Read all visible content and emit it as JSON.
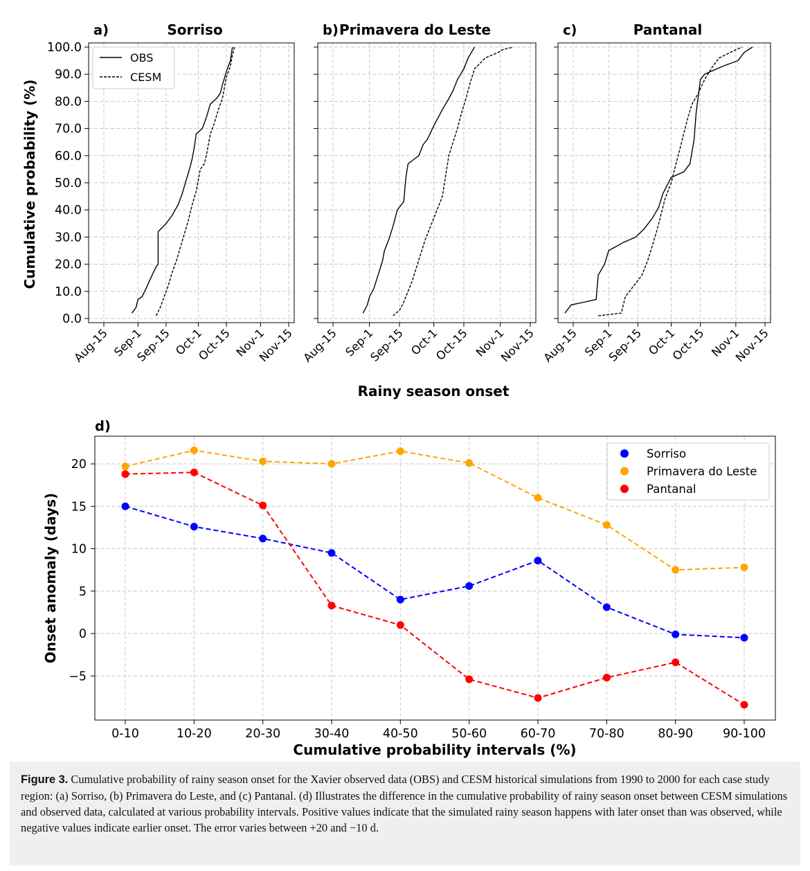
{
  "chart_data": [
    {
      "type": "line",
      "panel_label": "a)",
      "title": "Sorriso",
      "ylabel": "Cumulative probability (%)",
      "xlabel": "Rainy season onset",
      "x_ticks": [
        "Aug-15",
        "Sep-1",
        "Sep-15",
        "Oct-1",
        "Oct-15",
        "Nov-1",
        "Nov-15"
      ],
      "y_ticks": [
        "0.0",
        "10.0",
        "20.0",
        "30.0",
        "40.0",
        "50.0",
        "60.0",
        "70.0",
        "80.0",
        "90.0",
        "100.0"
      ],
      "xlim": [
        "Aug-15",
        "Nov-15"
      ],
      "ylim": [
        0,
        100
      ],
      "grid": true,
      "legend": "top-left",
      "series": [
        {
          "name": "OBS",
          "style": "solid",
          "points": [
            [
              "Aug-29",
              2
            ],
            [
              "Aug-31",
              4
            ],
            [
              "Sep-1",
              7
            ],
            [
              "Sep-3",
              8
            ],
            [
              "Sep-5",
              11
            ],
            [
              "Sep-8",
              16
            ],
            [
              "Sep-10",
              19
            ],
            [
              "Sep-11",
              20
            ],
            [
              "Sep-11",
              32
            ],
            [
              "Sep-15",
              35
            ],
            [
              "Sep-18",
              38
            ],
            [
              "Sep-21",
              42
            ],
            [
              "Sep-23",
              46
            ],
            [
              "Sep-25",
              51
            ],
            [
              "Sep-27",
              56
            ],
            [
              "Sep-28",
              59
            ],
            [
              "Sep-29",
              63
            ],
            [
              "Sep-30",
              68
            ],
            [
              "Oct-3",
              70
            ],
            [
              "Oct-5",
              74
            ],
            [
              "Oct-7",
              79
            ],
            [
              "Oct-10",
              81
            ],
            [
              "Oct-12",
              83
            ],
            [
              "Oct-13",
              86
            ],
            [
              "Oct-15",
              91
            ],
            [
              "Oct-17",
              95
            ],
            [
              "Oct-18",
              100
            ]
          ]
        },
        {
          "name": "CESM",
          "style": "dashed",
          "points": [
            [
              "Sep-10",
              1
            ],
            [
              "Sep-12",
              4
            ],
            [
              "Sep-14",
              8
            ],
            [
              "Sep-16",
              12
            ],
            [
              "Sep-18",
              17
            ],
            [
              "Sep-20",
              21
            ],
            [
              "Sep-22",
              26
            ],
            [
              "Sep-24",
              31
            ],
            [
              "Sep-26",
              36
            ],
            [
              "Sep-28",
              42
            ],
            [
              "Sep-30",
              47
            ],
            [
              "Oct-1",
              51
            ],
            [
              "Oct-2",
              55
            ],
            [
              "Oct-4",
              57
            ],
            [
              "Oct-5",
              60
            ],
            [
              "Oct-6",
              64
            ],
            [
              "Oct-7",
              68
            ],
            [
              "Oct-9",
              72
            ],
            [
              "Oct-11",
              77
            ],
            [
              "Oct-13",
              81
            ],
            [
              "Oct-14",
              85
            ],
            [
              "Oct-15",
              89
            ],
            [
              "Oct-17",
              93
            ],
            [
              "Oct-18",
              97
            ],
            [
              "Oct-19",
              100
            ]
          ]
        }
      ]
    },
    {
      "type": "line",
      "panel_label": "b)",
      "title": "Primavera do Leste",
      "xlabel": "Rainy season onset",
      "x_ticks": [
        "Aug-15",
        "Sep-1",
        "Sep-15",
        "Oct-1",
        "Oct-15",
        "Nov-1",
        "Nov-15"
      ],
      "xlim": [
        "Aug-15",
        "Nov-15"
      ],
      "ylim": [
        0,
        100
      ],
      "grid": true,
      "series": [
        {
          "name": "OBS",
          "style": "solid",
          "points": [
            [
              "Aug-29",
              2
            ],
            [
              "Aug-31",
              5
            ],
            [
              "Sep-1",
              8
            ],
            [
              "Sep-3",
              11
            ],
            [
              "Sep-5",
              16
            ],
            [
              "Sep-7",
              21
            ],
            [
              "Sep-8",
              25
            ],
            [
              "Sep-10",
              29
            ],
            [
              "Sep-12",
              34
            ],
            [
              "Sep-14",
              40
            ],
            [
              "Sep-17",
              43
            ],
            [
              "Sep-18",
              52
            ],
            [
              "Sep-19",
              57
            ],
            [
              "Sep-24",
              60
            ],
            [
              "Sep-26",
              64
            ],
            [
              "Sep-28",
              66
            ],
            [
              "Oct-1",
              71
            ],
            [
              "Oct-3",
              74
            ],
            [
              "Oct-5",
              77
            ],
            [
              "Oct-8",
              81
            ],
            [
              "Oct-10",
              84
            ],
            [
              "Oct-12",
              88
            ],
            [
              "Oct-15",
              92
            ],
            [
              "Oct-17",
              96
            ],
            [
              "Oct-20",
              100
            ]
          ]
        },
        {
          "name": "CESM",
          "style": "dashed",
          "points": [
            [
              "Sep-12",
              1
            ],
            [
              "Sep-15",
              3
            ],
            [
              "Sep-17",
              6
            ],
            [
              "Sep-19",
              10
            ],
            [
              "Sep-21",
              14
            ],
            [
              "Sep-23",
              19
            ],
            [
              "Sep-25",
              24
            ],
            [
              "Sep-27",
              29
            ],
            [
              "Sep-29",
              33
            ],
            [
              "Oct-1",
              37
            ],
            [
              "Oct-3",
              41
            ],
            [
              "Oct-5",
              45
            ],
            [
              "Oct-6",
              50
            ],
            [
              "Oct-7",
              55
            ],
            [
              "Oct-8",
              60
            ],
            [
              "Oct-10",
              65
            ],
            [
              "Oct-12",
              70
            ],
            [
              "Oct-14",
              76
            ],
            [
              "Oct-16",
              81
            ],
            [
              "Oct-18",
              87
            ],
            [
              "Oct-20",
              92
            ],
            [
              "Oct-25",
              96
            ],
            [
              "Oct-31",
              98
            ],
            [
              "Nov-2",
              99
            ],
            [
              "Nov-7",
              100
            ]
          ]
        }
      ]
    },
    {
      "type": "line",
      "panel_label": "c)",
      "title": "Pantanal",
      "xlabel": "Rainy season onset",
      "x_ticks": [
        "Aug-15",
        "Sep-1",
        "Sep-15",
        "Oct-1",
        "Oct-15",
        "Nov-1",
        "Nov-15"
      ],
      "xlim": [
        "Aug-15",
        "Nov-15"
      ],
      "ylim": [
        0,
        100
      ],
      "grid": true,
      "series": [
        {
          "name": "OBS",
          "style": "solid",
          "points": [
            [
              "Aug-11",
              2
            ],
            [
              "Aug-14",
              5
            ],
            [
              "Aug-20",
              6
            ],
            [
              "Aug-26",
              7
            ],
            [
              "Aug-27",
              16
            ],
            [
              "Aug-30",
              20
            ],
            [
              "Sep-1",
              25
            ],
            [
              "Sep-8",
              28
            ],
            [
              "Sep-14",
              30
            ],
            [
              "Sep-18",
              33
            ],
            [
              "Sep-22",
              37
            ],
            [
              "Sep-25",
              41
            ],
            [
              "Sep-27",
              46
            ],
            [
              "Sep-29",
              49
            ],
            [
              "Oct-1",
              52
            ],
            [
              "Oct-7",
              54
            ],
            [
              "Oct-10",
              57
            ],
            [
              "Oct-12",
              66
            ],
            [
              "Oct-13",
              76
            ],
            [
              "Oct-14",
              82
            ],
            [
              "Oct-15",
              88
            ],
            [
              "Oct-17",
              90
            ],
            [
              "Oct-26",
              93
            ],
            [
              "Nov-2",
              95
            ],
            [
              "Nov-5",
              98
            ],
            [
              "Nov-9",
              100
            ]
          ]
        },
        {
          "name": "CESM",
          "style": "dashed",
          "points": [
            [
              "Aug-27",
              1
            ],
            [
              "Sep-7",
              2
            ],
            [
              "Sep-9",
              8
            ],
            [
              "Sep-13",
              12
            ],
            [
              "Sep-17",
              16
            ],
            [
              "Sep-20",
              22
            ],
            [
              "Sep-22",
              27
            ],
            [
              "Sep-24",
              32
            ],
            [
              "Sep-26",
              38
            ],
            [
              "Sep-28",
              44
            ],
            [
              "Oct-1",
              50
            ],
            [
              "Oct-3",
              56
            ],
            [
              "Oct-5",
              62
            ],
            [
              "Oct-7",
              68
            ],
            [
              "Oct-9",
              74
            ],
            [
              "Oct-11",
              79
            ],
            [
              "Oct-14",
              83
            ],
            [
              "Oct-17",
              88
            ],
            [
              "Oct-21",
              93
            ],
            [
              "Oct-24",
              96
            ],
            [
              "Nov-1",
              99
            ],
            [
              "Nov-4",
              100
            ]
          ]
        }
      ]
    },
    {
      "type": "line",
      "panel_label": "d)",
      "xlabel": "Cumulative probability intervals (%)",
      "ylabel": "Onset anomaly (days)",
      "categories": [
        "0-10",
        "10-20",
        "20-30",
        "30-40",
        "40-50",
        "50-60",
        "60-70",
        "70-80",
        "80-90",
        "90-100"
      ],
      "y_ticks": [
        "−5",
        "0",
        "5",
        "10",
        "15",
        "20"
      ],
      "ylim": [
        -9.3,
        23.3
      ],
      "grid": true,
      "legend": "top-right",
      "series": [
        {
          "name": "Sorriso",
          "color": "#0000ff",
          "values": [
            15.0,
            12.6,
            11.2,
            9.5,
            4.0,
            5.6,
            8.6,
            3.1,
            -0.1,
            -0.5
          ]
        },
        {
          "name": "Primavera do Leste",
          "color": "#ffa500",
          "values": [
            19.7,
            21.6,
            20.3,
            20.0,
            21.5,
            20.1,
            16.0,
            12.8,
            7.5,
            7.8
          ]
        },
        {
          "name": "Pantanal",
          "color": "#ff0000",
          "values": [
            18.8,
            19.0,
            15.1,
            3.3,
            1.0,
            -5.4,
            -7.6,
            -5.2,
            -3.4,
            -8.4
          ]
        }
      ]
    }
  ],
  "caption": {
    "label": "Figure 3.",
    "text": " Cumulative probability of rainy season onset for the Xavier observed data (OBS) and CESM historical simulations from 1990 to 2000 for each case study region: (a) Sorriso, (b) Primavera do Leste, and (c) Pantanal. (d) Illustrates the difference in the cumulative probability of rainy season onset between CESM simulations and observed data, calculated at various probability intervals. Positive values indicate that the simulated rainy season happens with later onset than was observed, while negative values indicate earlier onset. The error varies between +20 and −10 d."
  }
}
